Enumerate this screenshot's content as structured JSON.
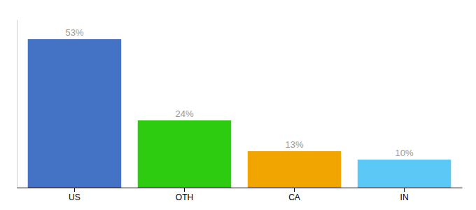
{
  "chart_data": {
    "type": "bar",
    "categories": [
      "US",
      "OTH",
      "CA",
      "IN"
    ],
    "values": [
      53,
      24,
      13,
      10
    ],
    "value_labels": [
      "53%",
      "24%",
      "13%",
      "10%"
    ],
    "colors": [
      "#4472c4",
      "#2ecc11",
      "#f0a500",
      "#5bc8f5"
    ],
    "ylim": [
      0,
      60
    ],
    "data_labels": true,
    "tick_labels": "x"
  }
}
